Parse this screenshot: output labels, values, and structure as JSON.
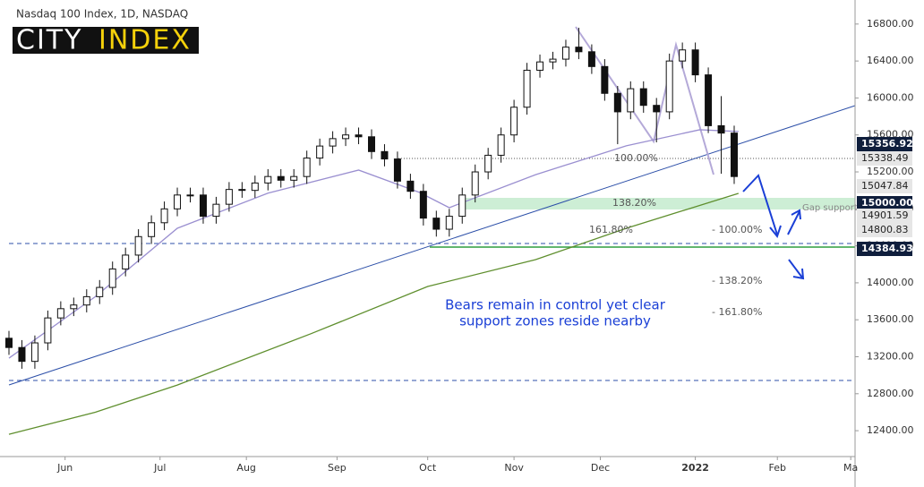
{
  "header": {
    "title": "Nasdaq 100 Index, 1D, NASDAQ",
    "logo_left": "CITY",
    "logo_right": "INDEX"
  },
  "chart_data": {
    "type": "candlestick",
    "xlim": [
      0,
      196
    ],
    "ylim": [
      12120,
      17060
    ],
    "xticks": [
      {
        "value": 13,
        "label": "Jun"
      },
      {
        "value": 35,
        "label": "Jul"
      },
      {
        "value": 55,
        "label": "Aug"
      },
      {
        "value": 76,
        "label": "Sep"
      },
      {
        "value": 97,
        "label": "Oct"
      },
      {
        "value": 117,
        "label": "Nov"
      },
      {
        "value": 137,
        "label": "Dec"
      },
      {
        "value": 159,
        "label": "2022"
      },
      {
        "value": 178,
        "label": "Feb"
      },
      {
        "value": 195,
        "label": "Ma"
      }
    ],
    "yticks": [
      {
        "value": 12400,
        "label": "12400.00"
      },
      {
        "value": 12800,
        "label": "12800.00"
      },
      {
        "value": 13200,
        "label": "13200.00"
      },
      {
        "value": 13600,
        "label": "13600.00"
      },
      {
        "value": 14000,
        "label": "14000.00"
      },
      {
        "value": 14400,
        "label": "14400.00"
      },
      {
        "value": 14800,
        "label": "14800.00"
      },
      {
        "value": 15200,
        "label": "15200.00"
      },
      {
        "value": 15600,
        "label": "15600.00"
      },
      {
        "value": 16000,
        "label": "16000.00"
      },
      {
        "value": 16400,
        "label": "16400.00"
      },
      {
        "value": 16800,
        "label": "16800.00"
      }
    ],
    "x": [
      0,
      3,
      6,
      9,
      12,
      15,
      18,
      21,
      24,
      27,
      30,
      33,
      36,
      39,
      42,
      45,
      48,
      51,
      54,
      57,
      60,
      63,
      66,
      69,
      72,
      75,
      78,
      81,
      84,
      87,
      90,
      93,
      96,
      99,
      102,
      105,
      108,
      111,
      114,
      117,
      120,
      123,
      126,
      129,
      132,
      135,
      138,
      141,
      144,
      147,
      150,
      153,
      156,
      159,
      162,
      165,
      168
    ],
    "open": [
      13400,
      13300,
      13150,
      13350,
      13620,
      13720,
      13760,
      13850,
      13950,
      14150,
      14300,
      14500,
      14650,
      14800,
      14950,
      14950,
      14720,
      14850,
      15010,
      15000,
      15080,
      15150,
      15110,
      15150,
      15350,
      15480,
      15560,
      15600,
      15580,
      15420,
      15340,
      15100,
      14990,
      14700,
      14580,
      14720,
      14950,
      15200,
      15380,
      15600,
      15900,
      16300,
      16390,
      16420,
      16550,
      16500,
      16340,
      16050,
      15850,
      16100,
      15920,
      15850,
      16400,
      16520,
      16250,
      15700,
      15620
    ],
    "high": [
      13480,
      13380,
      13430,
      13700,
      13800,
      13840,
      13930,
      14030,
      14230,
      14380,
      14580,
      14730,
      14880,
      15030,
      15030,
      15030,
      14930,
      15090,
      15090,
      15160,
      15230,
      15230,
      15230,
      15430,
      15560,
      15640,
      15680,
      15680,
      15660,
      15500,
      15420,
      15180,
      15070,
      14780,
      14800,
      15030,
      15280,
      15460,
      15680,
      15980,
      16380,
      16470,
      16500,
      16630,
      16760,
      16580,
      16420,
      16130,
      16180,
      16180,
      16000,
      16480,
      16600,
      16600,
      16330,
      16020,
      15700
    ],
    "low": [
      13220,
      13070,
      13070,
      13270,
      13540,
      13640,
      13680,
      13770,
      13870,
      14070,
      14220,
      14420,
      14570,
      14720,
      14870,
      14640,
      14640,
      14770,
      14920,
      14920,
      15000,
      15030,
      15030,
      15070,
      15270,
      15400,
      15480,
      15500,
      15340,
      15260,
      15020,
      14910,
      14620,
      14500,
      14500,
      14640,
      14870,
      15120,
      15300,
      15520,
      15820,
      16220,
      16310,
      16340,
      16420,
      16260,
      15970,
      15500,
      15770,
      15840,
      15520,
      15770,
      16320,
      16170,
      15620,
      15180,
      15070
    ],
    "close": [
      13300,
      13150,
      13350,
      13620,
      13720,
      13760,
      13850,
      13950,
      14150,
      14300,
      14500,
      14650,
      14800,
      14950,
      14950,
      14720,
      14850,
      15010,
      15000,
      15080,
      15150,
      15110,
      15150,
      15350,
      15480,
      15560,
      15600,
      15580,
      15420,
      15340,
      15100,
      14990,
      14700,
      14580,
      14720,
      14950,
      15200,
      15380,
      15600,
      15900,
      16300,
      16390,
      16420,
      16550,
      16500,
      16340,
      16050,
      15850,
      16100,
      15920,
      15850,
      16400,
      16520,
      16250,
      15700,
      15620,
      15150
    ],
    "lines": [
      {
        "color": "#9a8fd0",
        "x": [
          0,
          20,
          39,
          60,
          81,
          95,
          102,
          122,
          143,
          160,
          169
        ],
        "values": [
          13185,
          13850,
          14590,
          14970,
          15220,
          14980,
          14813,
          15170,
          15482,
          15656,
          15637
        ]
      },
      {
        "color": "#5f8f2e",
        "x": [
          0,
          20,
          39,
          70,
          97,
          122,
          143,
          169
        ],
        "values": [
          12361,
          12600,
          12894,
          13450,
          13960,
          14251,
          14590,
          14968
        ]
      }
    ],
    "price_labels": [
      {
        "value": 15356.92,
        "label": "15356.92",
        "highlight": true
      },
      {
        "value": 15338.49,
        "label": "15338.49",
        "highlight": false
      },
      {
        "value": 15047.84,
        "label": "15047.84",
        "highlight": false
      },
      {
        "value": 15000.0,
        "label": "15000.00",
        "highlight": true
      },
      {
        "value": 14901.59,
        "label": "14901.59",
        "highlight": false
      },
      {
        "value": 14800.83,
        "label": "14800.83",
        "highlight": false
      },
      {
        "value": 14384.93,
        "label": "14384.93",
        "highlight": true
      }
    ],
    "annotations": {
      "fib_a": [
        "100.00%",
        "138.20%",
        "161.80%"
      ],
      "fib_b": [
        "- 100.00%",
        "- 138.20%",
        "- 161.80%"
      ],
      "gap": "Gap support",
      "note": [
        "Bears remain in control yet clear",
        "support zones reside nearby"
      ]
    }
  }
}
